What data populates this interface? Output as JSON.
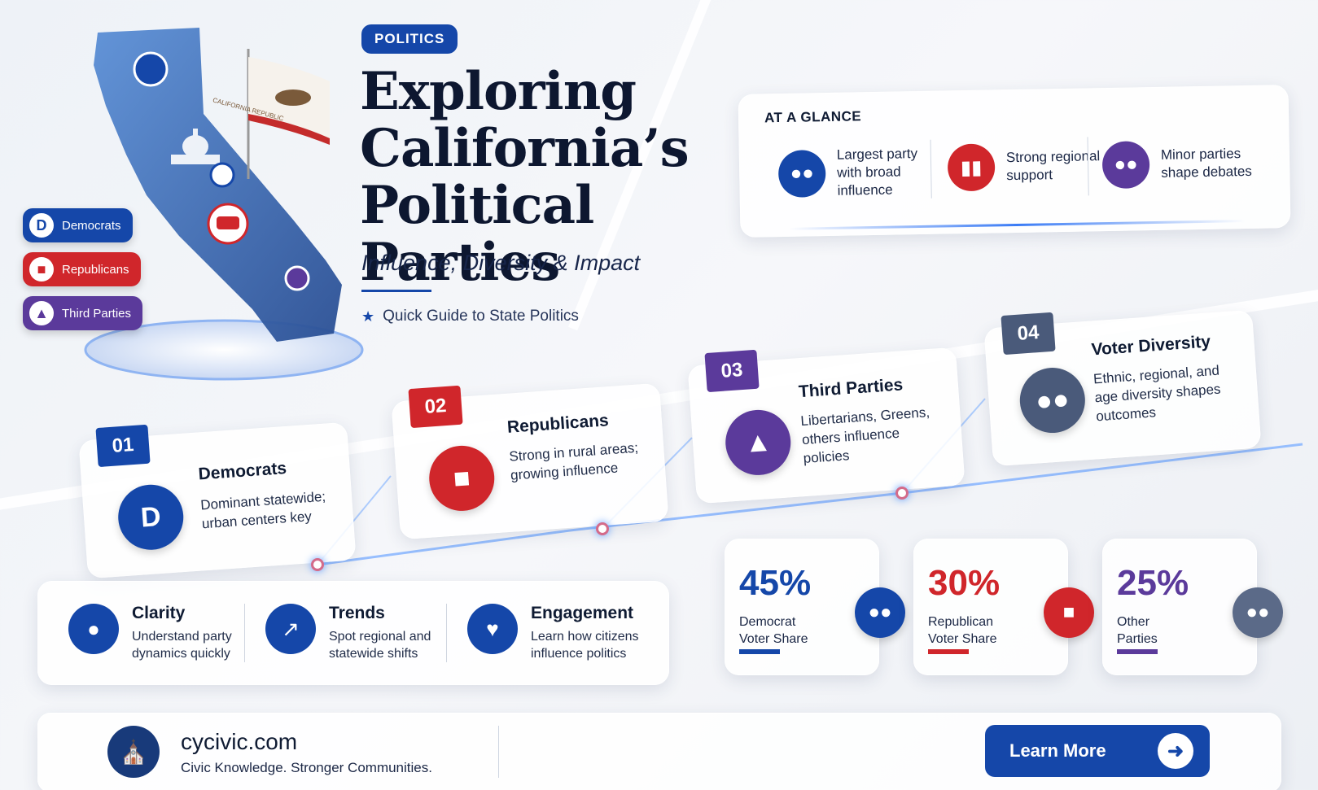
{
  "hero": {
    "tag": "POLITICS",
    "title": "Exploring California’s Political Parties",
    "subtitle": "Influence, Diversity & Impact",
    "guide": "Quick Guide to State Politics",
    "flag_text": "CALIFORNIA REPUBLIC",
    "party_pills": [
      {
        "label": "Democrats",
        "color": "#1547a9",
        "icon": "D"
      },
      {
        "label": "Republicans",
        "color": "#d0262b",
        "icon": "elephant-icon"
      },
      {
        "label": "Third Parties",
        "color": "#5b3a9b",
        "icon": "torch-icon"
      }
    ]
  },
  "glance": {
    "title": "AT A GLANCE",
    "items": [
      {
        "text": "Largest party with broad influence",
        "color": "#1547a9",
        "icon": "group-icon"
      },
      {
        "text": "Strong regional support",
        "color": "#d0262b",
        "icon": "bar-chart-icon"
      },
      {
        "text": "Minor parties shape debates",
        "color": "#5b3a9b",
        "icon": "group-icon"
      }
    ]
  },
  "steps": [
    {
      "num": "01",
      "title": "Democrats",
      "desc": "Dominant statewide; urban centers key",
      "color": "#1547a9",
      "icon": "D"
    },
    {
      "num": "02",
      "title": "Republicans",
      "desc": "Strong in rural areas; growing influence",
      "color": "#d0262b",
      "icon": "elephant-icon"
    },
    {
      "num": "03",
      "title": "Third Parties",
      "desc": "Libertarians, Greens, others influence policies",
      "color": "#5b3a9b",
      "icon": "torch-icon"
    },
    {
      "num": "04",
      "title": "Voter Diversity",
      "desc": "Ethnic, regional, and age diversity shapes outcomes",
      "color": "#4a5a7a",
      "icon": "group-icon"
    }
  ],
  "features": [
    {
      "title": "Clarity",
      "desc": "Understand party dynamics quickly",
      "icon": "lightbulb-icon"
    },
    {
      "title": "Trends",
      "desc": "Spot regional and statewide shifts",
      "icon": "trend-chart-icon"
    },
    {
      "title": "Engagement",
      "desc": "Learn how citizens influence politics",
      "icon": "hands-people-icon"
    }
  ],
  "stats": [
    {
      "value": "45%",
      "label": "Democrat Voter Share",
      "color": "#1547a9",
      "icon": "group-icon"
    },
    {
      "value": "30%",
      "label": "Republican Voter Share",
      "color": "#d0262b",
      "icon": "elephant-icon"
    },
    {
      "value": "25%",
      "label": "Other Parties",
      "color": "#5b3a9b",
      "icon": "group-icon"
    }
  ],
  "footer": {
    "site": "cycivic.com",
    "tagline": "Civic Knowledge.  Stronger Communities.",
    "cta": "Learn More"
  }
}
